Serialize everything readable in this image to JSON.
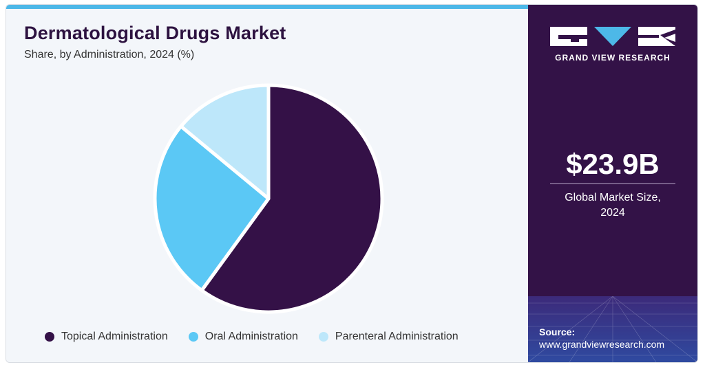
{
  "title": "Dermatological Drugs Market",
  "subtitle": "Share, by Administration, 2024 (%)",
  "chart_data": {
    "type": "pie",
    "categories": [
      "Topical Administration",
      "Oral Administration",
      "Parenteral Administration"
    ],
    "values": [
      60,
      26,
      14
    ],
    "colors": [
      "#341147",
      "#5bc8f5",
      "#bde7fa"
    ],
    "title": "Dermatological Drugs Market",
    "subtitle": "Share, by Administration, 2024 (%)",
    "legend_position": "bottom"
  },
  "legend": [
    {
      "label": "Topical Administration",
      "color": "#341147"
    },
    {
      "label": "Oral Administration",
      "color": "#5bc8f5"
    },
    {
      "label": "Parenteral Administration",
      "color": "#bde7fa"
    }
  ],
  "sidebar": {
    "brand": "GRAND VIEW RESEARCH",
    "market_value": "$23.9B",
    "market_value_label": "Global Market Size, 2024",
    "source_label": "Source:",
    "source_url": "www.grandviewresearch.com"
  },
  "colors": {
    "sidebar_bg": "#331247",
    "accent": "#4db8e8",
    "title": "#2d1240"
  }
}
